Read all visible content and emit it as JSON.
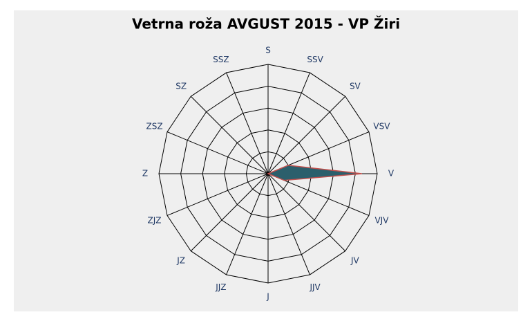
{
  "chart_data": {
    "type": "radar",
    "title": "Vetrna roža AVGUST 2015 - VP Žiri",
    "categories": [
      "S",
      "SSV",
      "SV",
      "VSV",
      "V",
      "VJV",
      "JV",
      "JJV",
      "J",
      "JJZ",
      "JZ",
      "ZJZ",
      "Z",
      "ZSZ",
      "SZ",
      "SSZ"
    ],
    "series": [
      {
        "color": "#2b5f6c",
        "values": [
          0,
          0,
          0,
          1.0,
          4.3,
          0.8,
          0,
          0,
          0,
          0,
          0,
          0,
          0,
          0,
          0,
          0
        ]
      }
    ],
    "ylim": [
      0,
      5
    ],
    "yticks": [
      1,
      2,
      3,
      4,
      5
    ],
    "grid": true
  }
}
